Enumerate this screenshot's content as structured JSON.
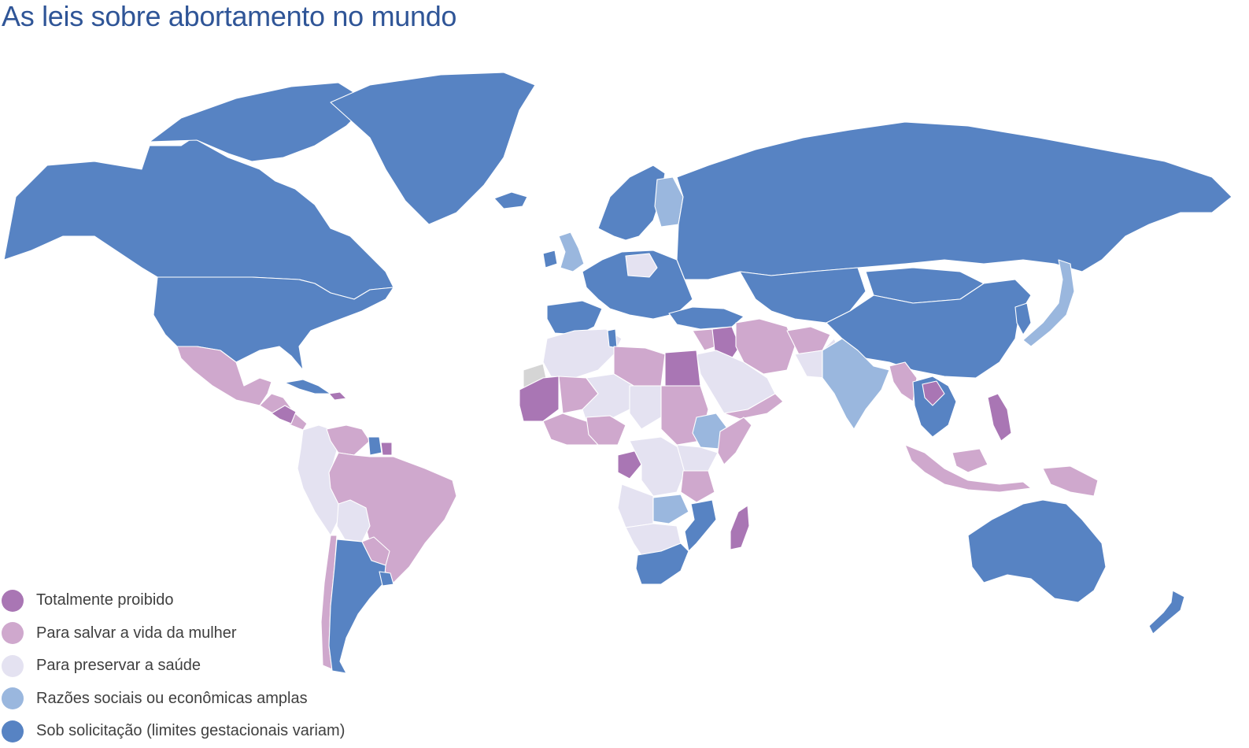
{
  "title": "As leis sobre abortamento no mundo",
  "colors": {
    "prohibited": "#a976b4",
    "life": "#cfa8cd",
    "health": "#e4e2f1",
    "socioeconomic": "#9ab7de",
    "request": "#5783c3",
    "nodata": "#d5d5d5"
  },
  "legend": [
    {
      "label": "Totalmente proibido",
      "category": "prohibited"
    },
    {
      "label": "Para salvar a vida da mulher",
      "category": "life"
    },
    {
      "label": "Para preservar a saúde",
      "category": "health"
    },
    {
      "label": "Razões sociais ou econômicas amplas",
      "category": "socioeconomic"
    },
    {
      "label": "Sob solicitação (limites gestacionais variam)",
      "category": "request"
    }
  ],
  "map_regions": [
    {
      "name": "canada-alaska",
      "category": "request"
    },
    {
      "name": "canadian-arctic-islands",
      "category": "request"
    },
    {
      "name": "greenland",
      "category": "request"
    },
    {
      "name": "iceland",
      "category": "request"
    },
    {
      "name": "usa",
      "category": "request"
    },
    {
      "name": "mexico",
      "category": "life"
    },
    {
      "name": "central-america",
      "category": "life"
    },
    {
      "name": "honduras-nicaragua",
      "category": "prohibited"
    },
    {
      "name": "cuba",
      "category": "request"
    },
    {
      "name": "hispaniola",
      "category": "prohibited"
    },
    {
      "name": "colombia-ecuador-peru",
      "category": "health"
    },
    {
      "name": "venezuela",
      "category": "life"
    },
    {
      "name": "guyana",
      "category": "request"
    },
    {
      "name": "suriname",
      "category": "prohibited"
    },
    {
      "name": "brazil",
      "category": "life"
    },
    {
      "name": "bolivia",
      "category": "health"
    },
    {
      "name": "paraguay",
      "category": "life"
    },
    {
      "name": "chile",
      "category": "life"
    },
    {
      "name": "argentina",
      "category": "request"
    },
    {
      "name": "uruguay",
      "category": "request"
    },
    {
      "name": "uk",
      "category": "socioeconomic"
    },
    {
      "name": "ireland",
      "category": "request"
    },
    {
      "name": "iberia",
      "category": "request"
    },
    {
      "name": "europe-west",
      "category": "request"
    },
    {
      "name": "poland",
      "category": "health"
    },
    {
      "name": "scandinavia",
      "category": "request"
    },
    {
      "name": "finland",
      "category": "socioeconomic"
    },
    {
      "name": "russia",
      "category": "request"
    },
    {
      "name": "central-asia",
      "category": "request"
    },
    {
      "name": "china",
      "category": "request"
    },
    {
      "name": "mongolia",
      "category": "request"
    },
    {
      "name": "japan",
      "category": "socioeconomic"
    },
    {
      "name": "koreas",
      "category": "request"
    },
    {
      "name": "turkey",
      "category": "request"
    },
    {
      "name": "middle-east",
      "category": "life"
    },
    {
      "name": "iraq",
      "category": "prohibited"
    },
    {
      "name": "iran",
      "category": "life"
    },
    {
      "name": "arabia",
      "category": "health"
    },
    {
      "name": "yemen-oman",
      "category": "life"
    },
    {
      "name": "afghanistan",
      "category": "life"
    },
    {
      "name": "pakistan",
      "category": "health"
    },
    {
      "name": "india",
      "category": "socioeconomic"
    },
    {
      "name": "myanmar",
      "category": "life"
    },
    {
      "name": "laos",
      "category": "prohibited"
    },
    {
      "name": "indochina",
      "category": "request"
    },
    {
      "name": "philippines",
      "category": "prohibited"
    },
    {
      "name": "indonesia",
      "category": "life"
    },
    {
      "name": "papua",
      "category": "life"
    },
    {
      "name": "australia",
      "category": "request"
    },
    {
      "name": "new-zealand",
      "category": "request"
    },
    {
      "name": "western-sahara",
      "category": "nodata"
    },
    {
      "name": "north-africa",
      "category": "health"
    },
    {
      "name": "libya",
      "category": "life"
    },
    {
      "name": "egypt",
      "category": "prohibited"
    },
    {
      "name": "tunisia",
      "category": "request"
    },
    {
      "name": "mauritania-senegal",
      "category": "prohibited"
    },
    {
      "name": "sahel",
      "category": "health"
    },
    {
      "name": "mali",
      "category": "life"
    },
    {
      "name": "nigeria",
      "category": "life"
    },
    {
      "name": "chad",
      "category": "health"
    },
    {
      "name": "sudan",
      "category": "life"
    },
    {
      "name": "ethiopia",
      "category": "socioeconomic"
    },
    {
      "name": "somalia",
      "category": "life"
    },
    {
      "name": "west-africa-coast",
      "category": "life"
    },
    {
      "name": "congo",
      "category": "prohibited"
    },
    {
      "name": "drc",
      "category": "health"
    },
    {
      "name": "east-africa",
      "category": "health"
    },
    {
      "name": "tanzania",
      "category": "life"
    },
    {
      "name": "angola",
      "category": "health"
    },
    {
      "name": "zambia",
      "category": "socioeconomic"
    },
    {
      "name": "mozambique",
      "category": "request"
    },
    {
      "name": "namibia-botswana",
      "category": "health"
    },
    {
      "name": "south-africa",
      "category": "request"
    },
    {
      "name": "madagascar",
      "category": "prohibited"
    }
  ]
}
